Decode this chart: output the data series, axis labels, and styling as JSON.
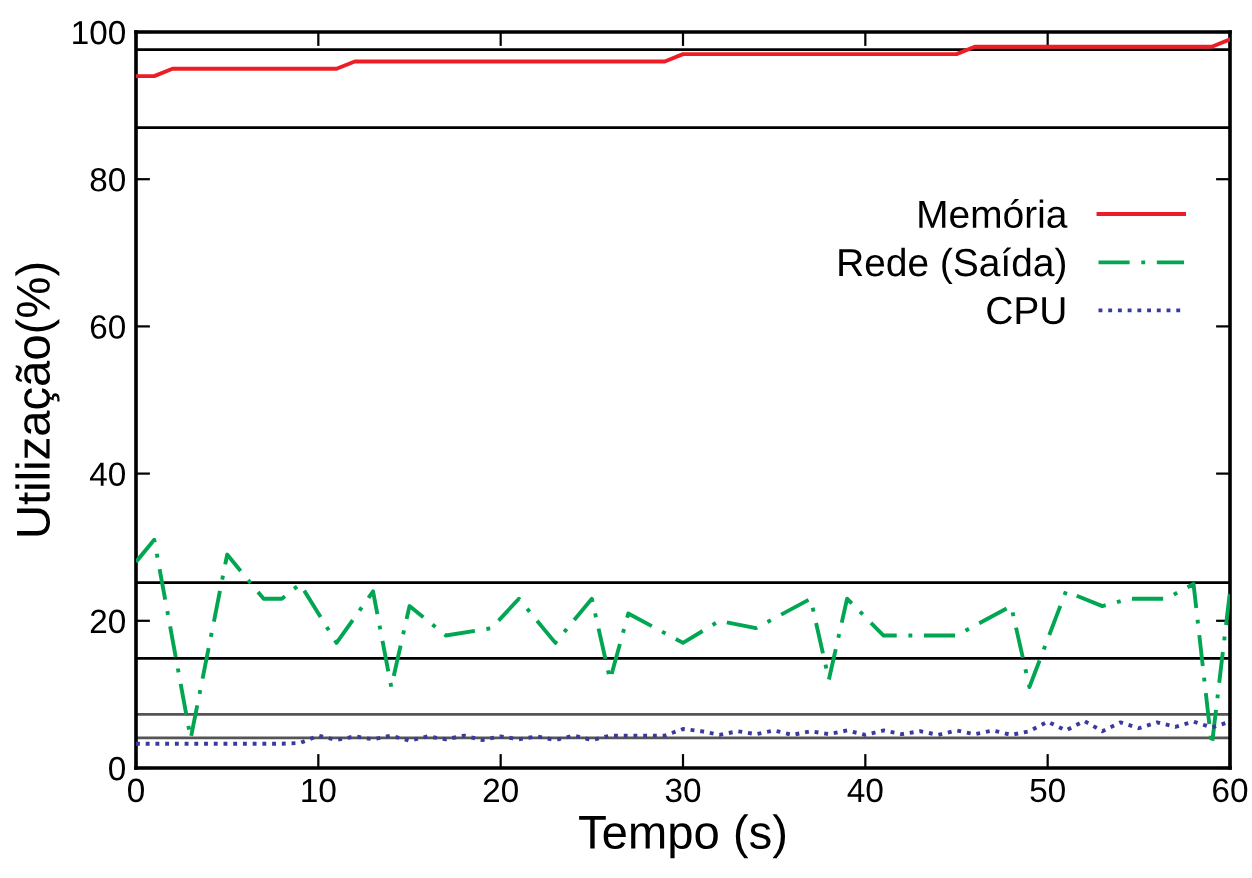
{
  "chart_data": {
    "type": "line",
    "xlabel": "Tempo (s)",
    "ylabel": "Utilização(%)",
    "xlim": [
      0,
      60
    ],
    "ylim": [
      0,
      100
    ],
    "xticks": [
      0,
      10,
      20,
      30,
      40,
      50,
      60
    ],
    "yticks": [
      0,
      20,
      40,
      60,
      80,
      100
    ],
    "grid": false,
    "legend": "top right",
    "series": [
      {
        "name": "Memória",
        "color": "#ee1c25",
        "line_style": "solid",
        "x": [
          0,
          1,
          2,
          11,
          12,
          29,
          30,
          45,
          46,
          58,
          59,
          60
        ],
        "values": [
          94,
          94,
          95,
          95,
          96,
          96,
          97,
          97,
          98,
          98,
          98,
          99
        ]
      },
      {
        "name": "Rede (Saída)",
        "color": "#00a651",
        "line_style": "dashdot",
        "x": [
          0,
          1,
          3,
          5,
          7,
          8,
          9,
          11,
          13,
          14,
          15,
          17,
          19.5,
          21,
          23,
          25,
          26,
          27,
          30,
          32,
          34,
          37,
          38,
          39,
          41,
          45,
          48,
          49,
          51,
          53,
          54.5,
          56.5,
          58,
          59,
          60
        ],
        "values": [
          28,
          31,
          4,
          29,
          23,
          23,
          25,
          17,
          24,
          11,
          22,
          18,
          19,
          23,
          17,
          23,
          12,
          21,
          17,
          20,
          19,
          23,
          12,
          23,
          18,
          18,
          22,
          11,
          24,
          22,
          23,
          23,
          25,
          3,
          24
        ]
      },
      {
        "name": "CPU",
        "color": "#3a3a9e",
        "line_style": "dotted",
        "x": [
          0,
          2,
          4,
          6,
          8,
          9,
          10,
          11,
          12,
          13,
          14,
          15,
          16,
          17,
          18,
          19,
          20,
          21,
          22,
          23,
          24,
          25,
          26,
          27,
          28,
          29,
          30,
          31,
          32,
          33,
          34,
          35,
          36,
          37,
          38,
          39,
          40,
          41,
          42,
          43,
          44,
          45,
          46,
          47,
          48,
          49,
          50,
          51,
          52,
          53,
          54,
          55,
          56,
          57,
          58,
          59,
          60
        ],
        "values": [
          3.3,
          3.3,
          3.3,
          3.3,
          3.3,
          3.4,
          4.4,
          3.8,
          4.3,
          3.9,
          4.4,
          3.7,
          4.3,
          3.9,
          4.4,
          3.8,
          4.3,
          3.9,
          4.3,
          3.8,
          4.4,
          3.8,
          4.4,
          4.4,
          4.4,
          4.4,
          5.3,
          5.0,
          4.5,
          5.0,
          4.6,
          5.1,
          4.5,
          5.0,
          4.6,
          5.1,
          4.5,
          5.1,
          4.6,
          5.0,
          4.5,
          5.1,
          4.6,
          5.1,
          4.5,
          5.0,
          6.3,
          5.1,
          6.4,
          5.0,
          6.2,
          5.4,
          6.2,
          5.6,
          6.3,
          5.5,
          6.3
        ]
      }
    ],
    "ref_lines": [
      {
        "axis": "y",
        "value": 97.6,
        "color": "#000000"
      },
      {
        "axis": "y",
        "value": 87,
        "color": "#000000"
      },
      {
        "axis": "y",
        "value": 25.2,
        "color": "#000000"
      },
      {
        "axis": "y",
        "value": 14.9,
        "color": "#000000"
      },
      {
        "axis": "y",
        "value": 7.3,
        "color": "#555555"
      },
      {
        "axis": "y",
        "value": 4.1,
        "color": "#555555"
      }
    ]
  }
}
